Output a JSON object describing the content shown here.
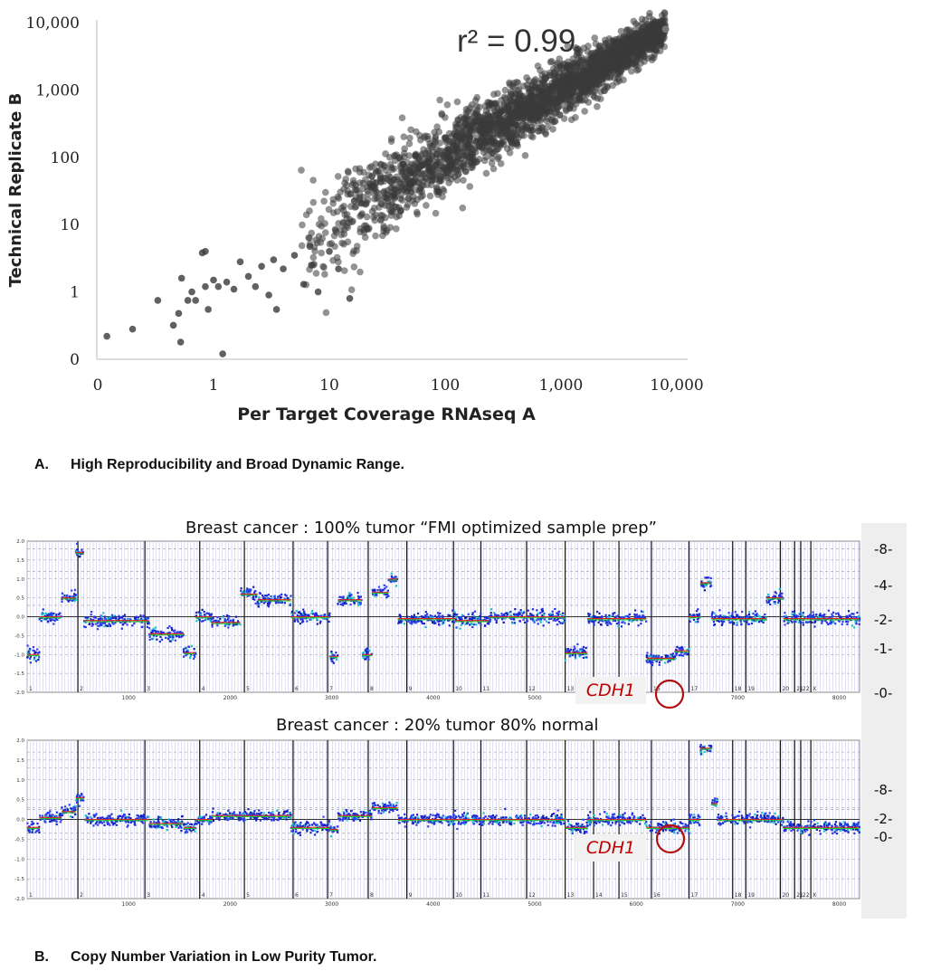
{
  "chart_data": [
    {
      "type": "scatter",
      "title": "",
      "annotation": "r² = 0.99",
      "xlabel": "Per Target Coverage RNAseq A",
      "ylabel": "Technical Replicate B",
      "x_scale": "log",
      "y_scale": "log",
      "xlim": [
        0,
        10000
      ],
      "ylim": [
        0,
        10000
      ],
      "x_ticks": [
        "0",
        "1",
        "10",
        "100",
        "1,000",
        "10,000"
      ],
      "y_ticks": [
        "0",
        "1",
        "10",
        "100",
        "1,000",
        "10,000"
      ],
      "grid": false,
      "marker_color": "#3a3a3a",
      "sparse_points": [
        {
          "x": 0.12,
          "y": 0.22
        },
        {
          "x": 0.2,
          "y": 0.28
        },
        {
          "x": 0.33,
          "y": 0.75
        },
        {
          "x": 0.45,
          "y": 0.32
        },
        {
          "x": 0.5,
          "y": 0.48
        },
        {
          "x": 0.52,
          "y": 0.18
        },
        {
          "x": 0.53,
          "y": 1.6
        },
        {
          "x": 0.6,
          "y": 0.75
        },
        {
          "x": 0.65,
          "y": 1.0
        },
        {
          "x": 0.7,
          "y": 0.75
        },
        {
          "x": 0.8,
          "y": 3.8
        },
        {
          "x": 0.85,
          "y": 4.0
        },
        {
          "x": 0.85,
          "y": 1.2
        },
        {
          "x": 0.9,
          "y": 0.55
        },
        {
          "x": 1.0,
          "y": 1.5
        },
        {
          "x": 1.1,
          "y": 1.2
        },
        {
          "x": 1.2,
          "y": 0.12
        },
        {
          "x": 1.3,
          "y": 1.4
        },
        {
          "x": 1.5,
          "y": 1.1
        },
        {
          "x": 1.7,
          "y": 2.8
        },
        {
          "x": 2.0,
          "y": 1.7
        },
        {
          "x": 2.3,
          "y": 1.2
        },
        {
          "x": 2.6,
          "y": 2.4
        },
        {
          "x": 3.0,
          "y": 0.9
        },
        {
          "x": 3.3,
          "y": 3.0
        },
        {
          "x": 3.5,
          "y": 0.55
        },
        {
          "x": 4.0,
          "y": 2.2
        },
        {
          "x": 5.0,
          "y": 3.5
        },
        {
          "x": 6.0,
          "y": 1.3
        },
        {
          "x": 7.0,
          "y": 2.5
        },
        {
          "x": 8.0,
          "y": 1.0
        },
        {
          "x": 10.0,
          "y": 4.0
        },
        {
          "x": 12.0,
          "y": 2.2
        },
        {
          "x": 15.0,
          "y": 0.8
        }
      ],
      "main_trend": "y ≈ x, from about 5 to 8,000, widening at low coverage"
    },
    {
      "type": "scatter",
      "title": "Breast cancer : 100% tumor  “FMI optimized sample prep”",
      "xlim": [
        0,
        8200
      ],
      "ylim": [
        -2.0,
        2.0
      ],
      "x_ticks": [
        "1000",
        "2000",
        "3000",
        "4000",
        "5000",
        "6000",
        "7000",
        "8000"
      ],
      "y_ticks": [
        "2.0",
        "1.5",
        "1.0",
        "0.5",
        "0.0",
        "-0.5",
        "-1.0",
        "-1.5",
        "-2.0"
      ],
      "chromosome_labels": [
        "1",
        "2",
        "3",
        "4",
        "5",
        "6",
        "7",
        "8",
        "9",
        "10",
        "11",
        "12",
        "13",
        "14",
        "15",
        "16",
        "17",
        "18",
        "19",
        "20",
        "21",
        "22",
        "X"
      ],
      "right_copy_number_labels": [
        "-8-",
        "-4-",
        "-2-",
        "-1-",
        "-0-"
      ],
      "highlight_gene": "CDH1",
      "segments": [
        {
          "x": [
            0,
            120
          ],
          "y": -1.0
        },
        {
          "x": [
            120,
            340
          ],
          "y": 0.0
        },
        {
          "x": [
            340,
            480
          ],
          "y": 0.5
        },
        {
          "x": [
            480,
            560
          ],
          "y": 1.7
        },
        {
          "x": [
            560,
            1200
          ],
          "y": -0.1
        },
        {
          "x": [
            1200,
            1540
          ],
          "y": -0.45
        },
        {
          "x": [
            1540,
            1660
          ],
          "y": -0.95
        },
        {
          "x": [
            1660,
            1820
          ],
          "y": 0.0
        },
        {
          "x": [
            1820,
            2100
          ],
          "y": -0.15
        },
        {
          "x": [
            2100,
            2270
          ],
          "y": 0.6
        },
        {
          "x": [
            2270,
            2600
          ],
          "y": 0.45
        },
        {
          "x": [
            2600,
            2980
          ],
          "y": 0.0
        },
        {
          "x": [
            2980,
            3060
          ],
          "y": -1.05
        },
        {
          "x": [
            3060,
            3300
          ],
          "y": 0.45
        },
        {
          "x": [
            3300,
            3400
          ],
          "y": -1.0
        },
        {
          "x": [
            3400,
            3560
          ],
          "y": 0.65
        },
        {
          "x": [
            3560,
            3650
          ],
          "y": 1.0
        },
        {
          "x": [
            3650,
            4220
          ],
          "y": -0.05
        },
        {
          "x": [
            4220,
            4550
          ],
          "y": -0.1
        },
        {
          "x": [
            4550,
            5300
          ],
          "y": 0.0
        },
        {
          "x": [
            5300,
            5520
          ],
          "y": -0.95
        },
        {
          "x": [
            5520,
            6100
          ],
          "y": -0.05
        },
        {
          "x": [
            6100,
            6380
          ],
          "y": -1.1
        },
        {
          "x": [
            6380,
            6520
          ],
          "y": -0.9
        },
        {
          "x": [
            6520,
            6630
          ],
          "y": 0.0
        },
        {
          "x": [
            6630,
            6740
          ],
          "y": 0.9
        },
        {
          "x": [
            6740,
            7280
          ],
          "y": -0.05
        },
        {
          "x": [
            7280,
            7450
          ],
          "y": 0.5
        },
        {
          "x": [
            7450,
            8200
          ],
          "y": -0.05
        }
      ]
    },
    {
      "type": "scatter",
      "title": "Breast cancer : 20% tumor  80% normal",
      "xlim": [
        0,
        8200
      ],
      "ylim": [
        -2.0,
        2.0
      ],
      "x_ticks": [
        "1000",
        "2000",
        "3000",
        "4000",
        "5000",
        "6000",
        "7000",
        "8000"
      ],
      "y_ticks": [
        "2.0",
        "1.5",
        "1.0",
        "0.5",
        "0.0",
        "-0.5",
        "-1.0",
        "-1.5",
        "-2.0"
      ],
      "chromosome_labels": [
        "1",
        "2",
        "3",
        "4",
        "5",
        "6",
        "7",
        "8",
        "9",
        "10",
        "11",
        "12",
        "13",
        "14",
        "15",
        "16",
        "17",
        "18",
        "19",
        "20",
        "21",
        "22",
        "X"
      ],
      "right_copy_number_labels": [
        "-8-",
        "-2-",
        "-0-"
      ],
      "highlight_gene": "CDH1",
      "segments": [
        {
          "x": [
            0,
            120
          ],
          "y": -0.2
        },
        {
          "x": [
            120,
            340
          ],
          "y": 0.05
        },
        {
          "x": [
            340,
            480
          ],
          "y": 0.2
        },
        {
          "x": [
            480,
            560
          ],
          "y": 0.55
        },
        {
          "x": [
            560,
            1200
          ],
          "y": 0.0
        },
        {
          "x": [
            1200,
            1540
          ],
          "y": -0.1
        },
        {
          "x": [
            1540,
            1660
          ],
          "y": -0.2
        },
        {
          "x": [
            1660,
            1820
          ],
          "y": 0.0
        },
        {
          "x": [
            1820,
            2100
          ],
          "y": 0.1
        },
        {
          "x": [
            2100,
            2600
          ],
          "y": 0.1
        },
        {
          "x": [
            2600,
            2980
          ],
          "y": -0.2
        },
        {
          "x": [
            2980,
            3060
          ],
          "y": -0.25
        },
        {
          "x": [
            3060,
            3400
          ],
          "y": 0.1
        },
        {
          "x": [
            3400,
            3650
          ],
          "y": 0.3
        },
        {
          "x": [
            3650,
            5300
          ],
          "y": 0.0
        },
        {
          "x": [
            5300,
            5520
          ],
          "y": -0.2
        },
        {
          "x": [
            5520,
            6100
          ],
          "y": 0.0
        },
        {
          "x": [
            6100,
            6520
          ],
          "y": -0.2
        },
        {
          "x": [
            6520,
            6630
          ],
          "y": 0.0
        },
        {
          "x": [
            6630,
            6740
          ],
          "y": 1.8
        },
        {
          "x": [
            6740,
            6800
          ],
          "y": 0.4
        },
        {
          "x": [
            6800,
            7450
          ],
          "y": 0.0
        },
        {
          "x": [
            7450,
            8200
          ],
          "y": -0.2
        }
      ]
    }
  ],
  "captions": {
    "a_letter": "A.",
    "a_text": "High Reproducibility and Broad Dynamic Range.",
    "b_letter": "B.",
    "b_text": "Copy Number Variation in Low Purity Tumor."
  }
}
